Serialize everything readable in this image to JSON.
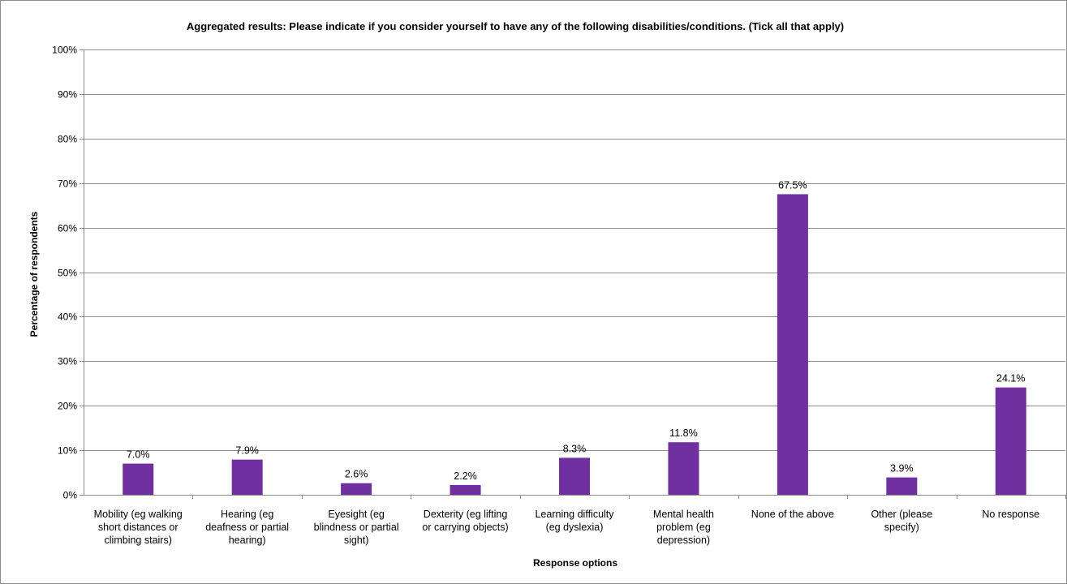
{
  "chart_data": {
    "type": "bar",
    "title": "Aggregated results: Please indicate if you consider yourself to have any of the following disabilities/conditions. (Tick all that apply)",
    "xlabel": "Response options",
    "ylabel": "Percentage of respondents",
    "ylim": [
      0,
      100
    ],
    "yticks": [
      "0%",
      "10%",
      "20%",
      "30%",
      "40%",
      "50%",
      "60%",
      "70%",
      "80%",
      "90%",
      "100%"
    ],
    "categories": [
      [
        "Mobility (eg walking",
        "short distances or",
        "climbing stairs)"
      ],
      [
        "Hearing (eg",
        "deafness or partial",
        "hearing)"
      ],
      [
        "Eyesight (eg",
        "blindness or partial",
        "sight)"
      ],
      [
        "Dexterity (eg lifting",
        "or carrying objects)"
      ],
      [
        "Learning difficulty",
        "(eg dyslexia)"
      ],
      [
        "Mental health",
        "problem (eg",
        "depression)"
      ],
      [
        "None of the above"
      ],
      [
        "Other (please",
        "specify)"
      ],
      [
        "No response"
      ]
    ],
    "values": [
      7.0,
      7.9,
      2.6,
      2.2,
      8.3,
      11.8,
      67.5,
      3.9,
      24.1
    ],
    "data_labels": [
      "7.0%",
      "7.9%",
      "2.6%",
      "2.2%",
      "8.3%",
      "11.8%",
      "67.5%",
      "3.9%",
      "24.1%"
    ],
    "bar_color": "#7030a0",
    "grid": true,
    "legend": "none"
  }
}
